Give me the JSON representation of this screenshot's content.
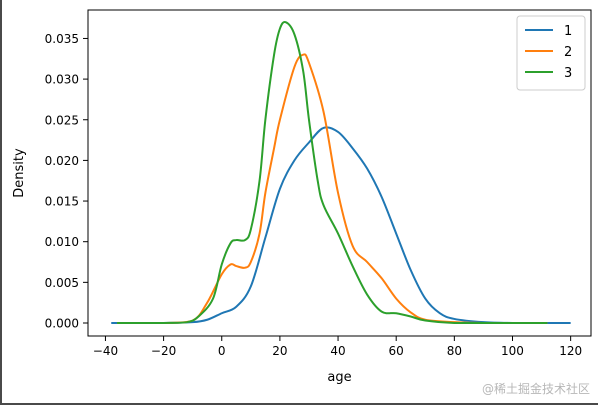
{
  "chart_data": {
    "type": "line",
    "title": "",
    "xlabel": "age",
    "ylabel": "Density",
    "xlim": [
      -46,
      127
    ],
    "ylim": [
      -0.0016,
      0.0385
    ],
    "x_ticks": [
      -40,
      -20,
      0,
      20,
      40,
      60,
      80,
      100,
      120
    ],
    "x_tick_labels": [
      "−40",
      "−20",
      "0",
      "20",
      "40",
      "60",
      "80",
      "100",
      "120"
    ],
    "y_ticks": [
      0.0,
      0.005,
      0.01,
      0.015,
      0.02,
      0.025,
      0.03,
      0.035
    ],
    "y_tick_labels": [
      "0.000",
      "0.005",
      "0.010",
      "0.015",
      "0.020",
      "0.025",
      "0.030",
      "0.035"
    ],
    "legend_position": "top-right",
    "series": [
      {
        "name": "1",
        "color": "#1f77b4",
        "x": [
          -38,
          -20,
          -10,
          -5,
          0,
          5,
          10,
          15,
          20,
          25,
          30,
          35,
          40,
          45,
          50,
          55,
          60,
          65,
          70,
          75,
          80,
          90,
          100,
          110,
          120
        ],
        "y": [
          0.0,
          0.0,
          0.0001,
          0.0004,
          0.0012,
          0.002,
          0.0045,
          0.0105,
          0.0165,
          0.02,
          0.0222,
          0.024,
          0.0235,
          0.0215,
          0.019,
          0.0155,
          0.011,
          0.0065,
          0.003,
          0.0012,
          0.0005,
          0.0001,
          0.0,
          0.0,
          0.0
        ]
      },
      {
        "name": "2",
        "color": "#ff7f0e",
        "x": [
          -36,
          -20,
          -10,
          -5,
          0,
          3,
          5,
          8,
          10,
          13,
          15,
          18,
          20,
          25,
          28,
          30,
          35,
          40,
          45,
          50,
          55,
          60,
          65,
          70,
          80,
          90,
          100,
          112
        ],
        "y": [
          0.0,
          0.0,
          0.0003,
          0.0025,
          0.006,
          0.0072,
          0.007,
          0.0068,
          0.0075,
          0.011,
          0.016,
          0.0215,
          0.025,
          0.0315,
          0.033,
          0.032,
          0.026,
          0.016,
          0.0095,
          0.0075,
          0.0055,
          0.003,
          0.0013,
          0.0004,
          0.0001,
          0.0,
          0.0,
          0.0
        ]
      },
      {
        "name": "3",
        "color": "#2ca02c",
        "x": [
          -36,
          -20,
          -12,
          -8,
          -3,
          0,
          3,
          5,
          8,
          10,
          13,
          15,
          18,
          20,
          22,
          25,
          28,
          30,
          33,
          35,
          40,
          45,
          50,
          55,
          60,
          65,
          70,
          80,
          90,
          100,
          112
        ],
        "y": [
          0.0,
          0.0,
          0.0001,
          0.0008,
          0.003,
          0.0072,
          0.0098,
          0.0102,
          0.0102,
          0.0115,
          0.0175,
          0.025,
          0.033,
          0.0362,
          0.037,
          0.0355,
          0.031,
          0.025,
          0.0175,
          0.0145,
          0.011,
          0.007,
          0.0035,
          0.0014,
          0.0012,
          0.0008,
          0.0003,
          0.0,
          0.0,
          0.0,
          0.0
        ]
      }
    ]
  },
  "watermark": "@稀土掘金技术社区"
}
